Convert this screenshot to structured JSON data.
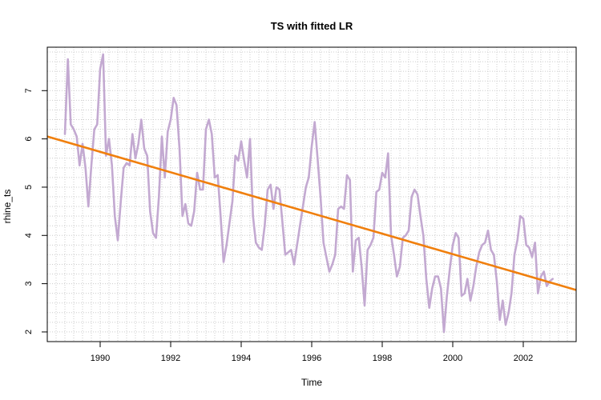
{
  "chart_data": {
    "type": "line",
    "title": "TS with fitted LR",
    "xlabel": "Time",
    "ylabel": "rhine_ts",
    "xlim": [
      1988.5,
      2003.5
    ],
    "ylim": [
      1.8,
      7.9
    ],
    "x_ticks": [
      1990,
      1992,
      1994,
      1996,
      1998,
      2000,
      2002
    ],
    "y_ticks": [
      2,
      3,
      4,
      5,
      6,
      7
    ],
    "grid": true,
    "colors": {
      "series": "#c3a9d1",
      "fit": "#f07f0d",
      "grid": "#cccccc",
      "axis": "#000000"
    },
    "series": [
      {
        "start": 1989.0,
        "frequency": 12,
        "values": [
          6.1,
          7.65,
          6.3,
          6.2,
          6.05,
          5.45,
          5.9,
          5.4,
          4.6,
          5.45,
          6.2,
          6.3,
          7.45,
          7.75,
          5.65,
          6.0,
          5.45,
          4.4,
          3.9,
          4.7,
          5.4,
          5.5,
          5.45,
          6.1,
          5.6,
          5.9,
          6.4,
          5.8,
          5.65,
          4.5,
          4.05,
          3.95,
          4.8,
          6.05,
          5.2,
          6.15,
          6.4,
          6.85,
          6.7,
          5.8,
          4.4,
          4.65,
          4.25,
          4.2,
          4.5,
          5.3,
          4.95,
          4.95,
          6.2,
          6.4,
          6.1,
          5.2,
          5.25,
          4.4,
          3.45,
          3.8,
          4.25,
          4.7,
          5.65,
          5.55,
          5.95,
          5.55,
          5.2,
          6.0,
          4.4,
          3.85,
          3.75,
          3.7,
          4.2,
          4.95,
          5.05,
          4.55,
          5.0,
          4.95,
          4.3,
          3.6,
          3.65,
          3.7,
          3.4,
          3.8,
          4.2,
          4.6,
          5.0,
          5.2,
          5.85,
          6.35,
          5.6,
          4.8,
          3.85,
          3.55,
          3.25,
          3.4,
          3.6,
          4.55,
          4.6,
          4.55,
          5.25,
          5.15,
          3.25,
          3.9,
          3.95,
          3.35,
          2.55,
          3.7,
          3.8,
          3.95,
          4.9,
          4.95,
          5.3,
          5.2,
          5.7,
          4.0,
          3.6,
          3.15,
          3.35,
          3.95,
          4.0,
          4.1,
          4.8,
          4.95,
          4.85,
          4.4,
          4.0,
          3.1,
          2.5,
          2.9,
          3.15,
          3.15,
          2.9,
          2.0,
          2.75,
          3.3,
          3.8,
          4.05,
          3.95,
          2.75,
          2.8,
          3.1,
          2.65,
          2.95,
          3.35,
          3.65,
          3.8,
          3.85,
          4.1,
          3.7,
          3.6,
          3.05,
          2.25,
          2.65,
          2.15,
          2.4,
          2.8,
          3.6,
          3.9,
          4.4,
          4.35,
          3.8,
          3.75,
          3.55,
          3.85,
          2.8,
          3.15,
          3.25,
          2.95,
          3.05,
          3.1
        ]
      }
    ],
    "fit": {
      "x": [
        1988.5,
        2003.5
      ],
      "y": [
        6.05,
        2.87
      ]
    }
  }
}
